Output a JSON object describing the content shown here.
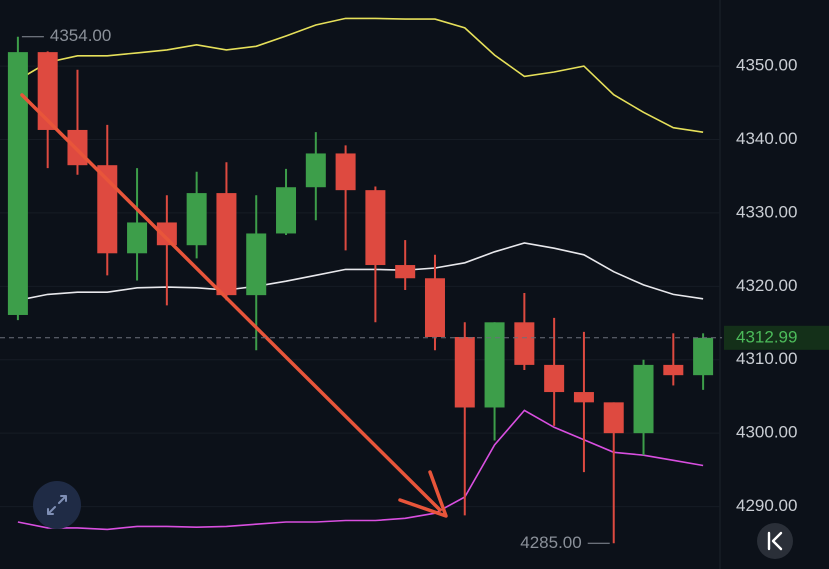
{
  "chart_data": {
    "type": "candlestick",
    "ylim": [
      4281.5,
      4359
    ],
    "yticks": [
      {
        "value": 4350,
        "label": "4350.00"
      },
      {
        "value": 4340,
        "label": "4340.00"
      },
      {
        "value": 4330,
        "label": "4330.00"
      },
      {
        "value": 4320,
        "label": "4320.00"
      },
      {
        "value": 4310,
        "label": "4310.00"
      },
      {
        "value": 4300,
        "label": "4300.00"
      },
      {
        "value": 4290,
        "label": "4290.00"
      }
    ],
    "grid": true,
    "up_color": "#3d9e4a",
    "down_color": "#de4a40",
    "candles": {
      "open": [
        4316.1,
        4351.9,
        4341.3,
        4336.5,
        4324.5,
        4328.7,
        4325.6,
        4332.7,
        4318.8,
        4327.2,
        4333.5,
        4338.1,
        4333.1,
        4322.9,
        4321.1,
        4313.1,
        4303.5,
        4315.1,
        4309.3,
        4305.6,
        4304.2,
        4300.0,
        4309.3,
        4307.9
      ],
      "high": [
        4354,
        4352.0,
        4349.5,
        4342.0,
        4336.1,
        4332.4,
        4335.6,
        4336.9,
        4332.4,
        4336.0,
        4341.0,
        4339.2,
        4333.6,
        4326.3,
        4324.3,
        4315.1,
        4315.1,
        4319.1,
        4315.7,
        4313.8,
        4304.2,
        4310.0,
        4313.6,
        4313.6
      ],
      "low": [
        4315.4,
        4336.1,
        4335.2,
        4321.5,
        4320.8,
        4317.4,
        4323.8,
        4318.1,
        4311.3,
        4327.0,
        4329.0,
        4324.9,
        4315.1,
        4319.5,
        4311.3,
        4288.8,
        4299.0,
        4308.6,
        4301.0,
        4294.7,
        4285,
        4297.0,
        4306.5,
        4305.9
      ],
      "close": [
        4351.9,
        4341.3,
        4336.5,
        4324.5,
        4328.7,
        4325.6,
        4332.7,
        4318.8,
        4327.2,
        4333.5,
        4338.1,
        4333.1,
        4322.9,
        4321.1,
        4313.1,
        4303.5,
        4315.1,
        4309.3,
        4305.6,
        4304.2,
        4300.0,
        4309.3,
        4307.9,
        4312.99
      ]
    },
    "series": [
      {
        "color": "#e6e05a",
        "values": [
          4348.1,
          4350.5,
          4351.4,
          4351.4,
          4351.8,
          4352.2,
          4352.9,
          4352.2,
          4352.7,
          4354.1,
          4355.6,
          4356.5,
          4356.5,
          4356.4,
          4356.4,
          4355.2,
          4351.5,
          4348.6,
          4349.2,
          4350.0,
          4346.1,
          4343.7,
          4341.6,
          4341.0
        ]
      },
      {
        "color": "#e8e8ec",
        "values": [
          4318.1,
          4318.9,
          4319.2,
          4319.2,
          4319.8,
          4319.9,
          4319.8,
          4319.5,
          4320.0,
          4320.7,
          4321.5,
          4322.3,
          4322.3,
          4322.2,
          4322.5,
          4323.2,
          4324.7,
          4325.9,
          4325.2,
          4324.3,
          4322.0,
          4320.2,
          4318.9,
          4318.3
        ]
      },
      {
        "color": "#d94fe0",
        "values": [
          4287.9,
          4287.1,
          4287.1,
          4286.9,
          4287.3,
          4287.3,
          4287.2,
          4287.3,
          4287.6,
          4287.9,
          4287.9,
          4288.1,
          4288.1,
          4288.4,
          4289.1,
          4291.3,
          4298.4,
          4303.1,
          4300.8,
          4299.1,
          4297.4,
          4297.0,
          4296.3,
          4295.6
        ]
      }
    ],
    "high_marker": {
      "value": 4354,
      "label": "4354.00"
    },
    "low_marker": {
      "value": 4285,
      "label": "4285.00"
    },
    "last_price": {
      "value": 4312.99,
      "label": "4312.99",
      "color": "#4cbb5a"
    }
  }
}
